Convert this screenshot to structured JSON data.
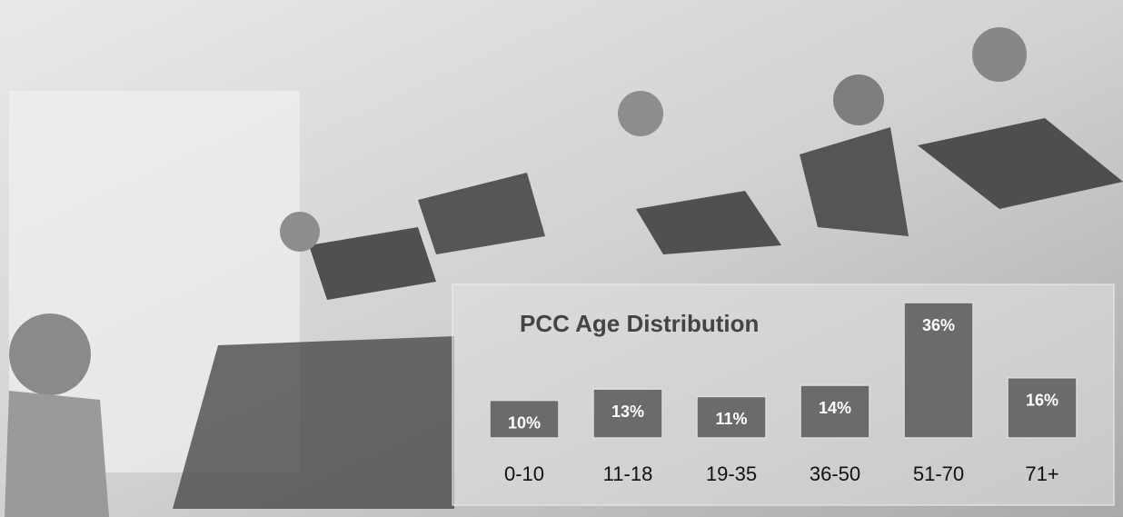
{
  "chart_data": {
    "type": "bar",
    "title": "PCC Age Distribution",
    "categories": [
      "0-10",
      "11-18",
      "19-35",
      "36-50",
      "51-70",
      "71+"
    ],
    "values": [
      10,
      13,
      11,
      14,
      36,
      16
    ],
    "value_labels": [
      "10%",
      "13%",
      "11%",
      "14%",
      "36%",
      "16%"
    ],
    "color": "#6b6b6b"
  }
}
